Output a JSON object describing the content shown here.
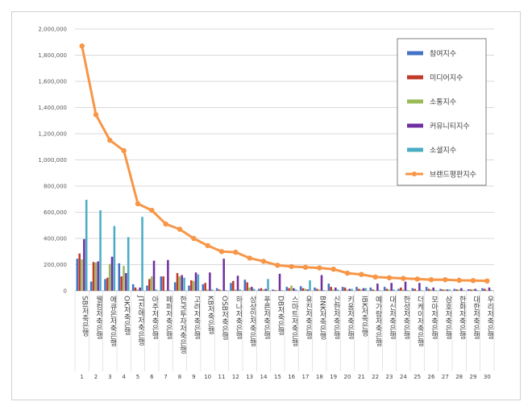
{
  "chart_data": {
    "type": "bar",
    "title": "",
    "xlabel": "",
    "ylabel": "",
    "ylim": [
      0,
      2000000
    ],
    "yticks": [
      "0",
      "200,000",
      "400,000",
      "600,000",
      "800,000",
      "1,000,000",
      "1,200,000",
      "1,400,000",
      "1,600,000",
      "1,800,000",
      "2,000,000"
    ],
    "grid": true,
    "legend_position": "right",
    "categories": [
      "SBI저축은행",
      "웰컴저축은행",
      "애큐온저축은행",
      "OK저축은행",
      "JT친애저축은행",
      "아주저축은행",
      "페퍼저축은행",
      "한국투자저축은행",
      "고려저축은행",
      "KB저축은행",
      "OSB저축은행",
      "하나저축은행",
      "상상인저축은행",
      "푸른저축은행",
      "DB저축은행",
      "스마트저축은행",
      "유진저축은행",
      "BNK저축은행",
      "신한저축은행",
      "키움저축은행",
      "IBK저축은행",
      "예가람저축은행",
      "대신저축은행",
      "한성저축은행",
      "더케이저축은행",
      "모아저축은행",
      "삼호저축은행",
      "한화저축은행",
      "대한저축은행",
      "우리저축은행"
    ],
    "ranks": [
      "1",
      "2",
      "3",
      "4",
      "5",
      "6",
      "7",
      "8",
      "9",
      "10",
      "11",
      "12",
      "13",
      "14",
      "15",
      "16",
      "17",
      "18",
      "19",
      "20",
      "21",
      "22",
      "23",
      "24",
      "25",
      "26",
      "27",
      "28",
      "29",
      "30"
    ],
    "series": [
      {
        "name": "참여지수",
        "color": "#4472c4",
        "values": [
          245000,
          70000,
          90000,
          210000,
          50000,
          40000,
          110000,
          65000,
          40000,
          50000,
          20000,
          60000,
          85000,
          15000,
          10000,
          30000,
          35000,
          25000,
          55000,
          30000,
          30000,
          25000,
          30000,
          15000,
          20000,
          30000,
          15000,
          15000,
          12000,
          20000
        ]
      },
      {
        "name": "미디어지수",
        "color": "#c0392b",
        "values": [
          285000,
          220000,
          100000,
          110000,
          25000,
          90000,
          110000,
          135000,
          80000,
          60000,
          10000,
          75000,
          65000,
          20000,
          5000,
          20000,
          20000,
          15000,
          30000,
          25000,
          15000,
          10000,
          15000,
          25000,
          15000,
          15000,
          10000,
          10000,
          10000,
          15000
        ]
      },
      {
        "name": "소통지수",
        "color": "#9bbb59",
        "values": [
          240000,
          215000,
          205000,
          190000,
          10000,
          110000,
          5000,
          110000,
          75000,
          10000,
          5000,
          10000,
          25000,
          10000,
          5000,
          40000,
          15000,
          10000,
          10000,
          10000,
          10000,
          5000,
          10000,
          10000,
          5000,
          10000,
          10000,
          10000,
          10000,
          5000
        ]
      },
      {
        "name": "커뮤니티지수",
        "color": "#7030a0",
        "values": [
          395000,
          225000,
          260000,
          135000,
          25000,
          230000,
          235000,
          120000,
          140000,
          140000,
          245000,
          115000,
          30000,
          15000,
          130000,
          20000,
          10000,
          120000,
          25000,
          15000,
          20000,
          55000,
          60000,
          70000,
          60000,
          25000,
          10000,
          20000,
          15000,
          25000
        ]
      },
      {
        "name": "소셜지수",
        "color": "#4bacc6",
        "values": [
          695000,
          615000,
          495000,
          410000,
          565000,
          10000,
          5000,
          100000,
          125000,
          10000,
          5000,
          10000,
          15000,
          90000,
          5000,
          10000,
          80000,
          5000,
          10000,
          15000,
          20000,
          5000,
          10000,
          5000,
          5000,
          5000,
          10000,
          5000,
          5000,
          5000
        ]
      },
      {
        "name": "브랜드평판지수",
        "color": "#f79646",
        "type": "line",
        "values": [
          1870000,
          1345000,
          1150000,
          1070000,
          665000,
          615000,
          510000,
          470000,
          400000,
          345000,
          300000,
          295000,
          250000,
          225000,
          195000,
          185000,
          180000,
          175000,
          165000,
          135000,
          125000,
          105000,
          100000,
          95000,
          90000,
          85000,
          85000,
          80000,
          78000,
          75000
        ]
      }
    ]
  }
}
